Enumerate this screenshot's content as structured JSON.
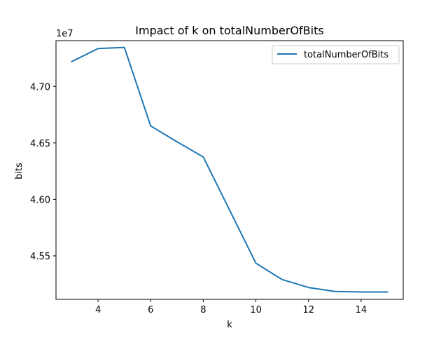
{
  "chart_data": {
    "type": "line",
    "title": "Impact of k on totalNumberOfBits",
    "xlabel": "k",
    "ylabel": "bits",
    "y_offset_label": "1e7",
    "xlim": [
      2.4,
      15.6
    ],
    "ylim": [
      45.115,
      47.405
    ],
    "x_ticks": [
      4,
      6,
      8,
      10,
      12,
      14
    ],
    "x_tick_labels": [
      "4",
      "6",
      "8",
      "10",
      "12",
      "14"
    ],
    "y_ticks": [
      45.5,
      46.0,
      46.5,
      47.0
    ],
    "y_tick_labels": [
      "4.55",
      "4.60",
      "4.65",
      "4.70"
    ],
    "grid": false,
    "legend_position": "top-right",
    "series": [
      {
        "name": "totalNumberOfBits",
        "color": "#1f77b4",
        "x": [
          3,
          4,
          5,
          6,
          7,
          8,
          9,
          10,
          11,
          12,
          13,
          14,
          15
        ],
        "y": [
          47.22,
          47.335,
          47.345,
          46.65,
          46.51,
          46.375,
          45.905,
          45.435,
          45.29,
          45.22,
          45.185,
          45.18,
          45.18
        ]
      }
    ]
  }
}
